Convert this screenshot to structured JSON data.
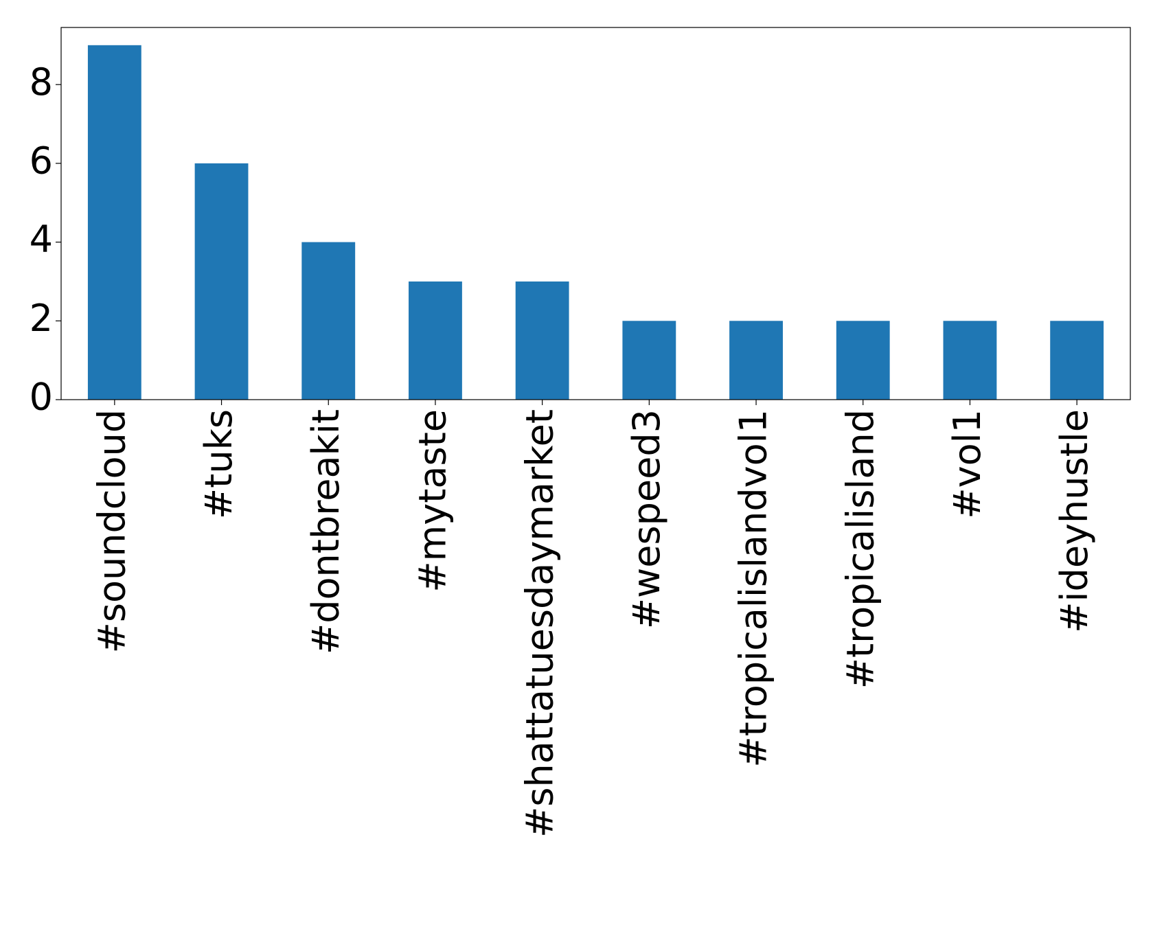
{
  "chart_data": {
    "type": "bar",
    "categories": [
      "#soundcloud",
      "#tuks",
      "#dontbreakit",
      "#mytaste",
      "#shattatuesdaymarket",
      "#wespeed3",
      "#tropicalislandvol1",
      "#tropicalisland",
      "#vol1",
      "#ideyhustle"
    ],
    "values": [
      9,
      6,
      4,
      3,
      3,
      2,
      2,
      2,
      2,
      2
    ],
    "color": "#1f77b4",
    "ylim": [
      0,
      9.45
    ],
    "yticks": [
      0,
      2,
      4,
      6,
      8
    ],
    "grid": false
  }
}
